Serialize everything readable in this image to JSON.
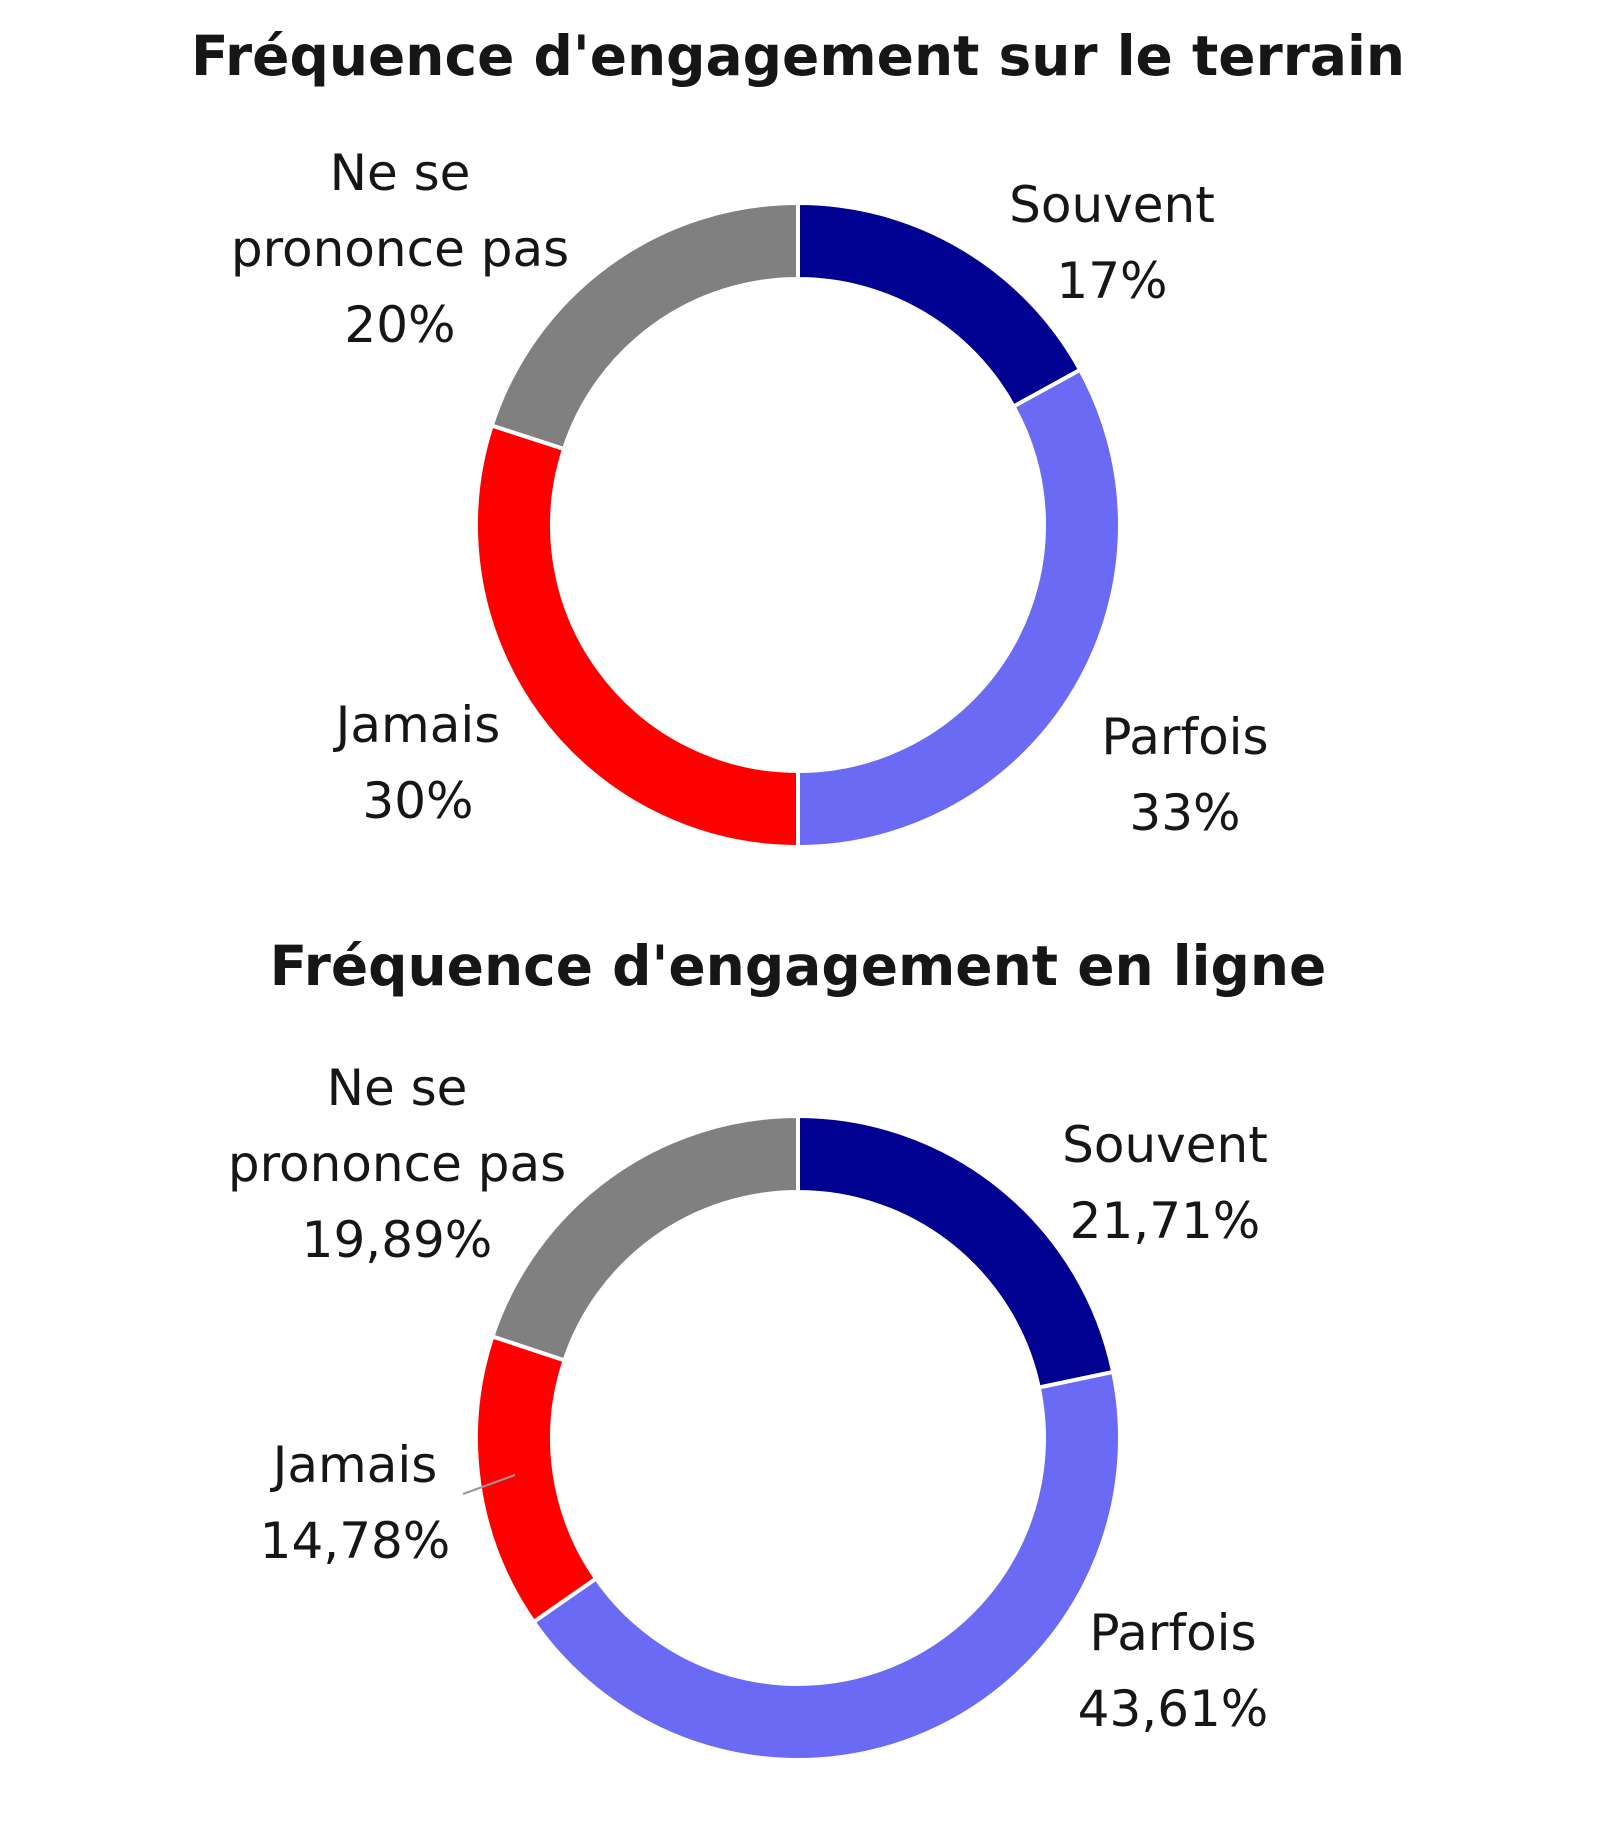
{
  "chart_data": [
    {
      "type": "pie",
      "title": "Fréquence d'engagement sur le terrain",
      "slices": [
        {
          "name_lines": [
            "Souvent"
          ],
          "label": "Souvent",
          "value": 17,
          "value_label": "17%",
          "color": "#000091"
        },
        {
          "name_lines": [
            "Parfois"
          ],
          "label": "Parfois",
          "value": 33,
          "value_label": "33%",
          "color": "#6a6af4"
        },
        {
          "name_lines": [
            "Jamais"
          ],
          "label": "Jamais",
          "value": 30,
          "value_label": "30%",
          "color": "#ff0000"
        },
        {
          "name_lines": [
            "Ne se",
            "prononce pas"
          ],
          "label": "Ne se prononce pas",
          "value": 20,
          "value_label": "20%",
          "color": "#808080"
        }
      ]
    },
    {
      "type": "pie",
      "title": "Fréquence d'engagement en ligne",
      "slices": [
        {
          "name_lines": [
            "Souvent"
          ],
          "label": "Souvent",
          "value": 21.71,
          "value_label": "21,71%",
          "color": "#000091"
        },
        {
          "name_lines": [
            "Parfois"
          ],
          "label": "Parfois",
          "value": 43.61,
          "value_label": "43,61%",
          "color": "#6a6af4"
        },
        {
          "name_lines": [
            "Jamais"
          ],
          "label": "Jamais",
          "value": 14.78,
          "value_label": "14,78%",
          "color": "#ff0000"
        },
        {
          "name_lines": [
            "Ne se",
            "prononce pas"
          ],
          "label": "Ne se prononce pas",
          "value": 19.89,
          "value_label": "19,89%",
          "color": "#808080"
        }
      ]
    }
  ]
}
